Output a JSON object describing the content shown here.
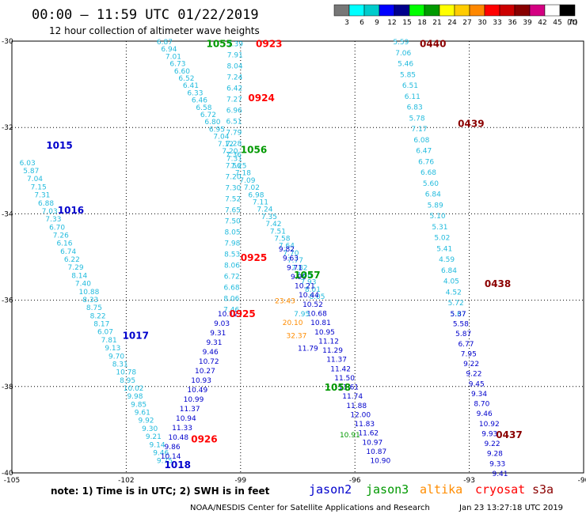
{
  "title": "00:00 – 11:59 UTC 01/22/2019",
  "subtitle": "12 hour collection of altimeter wave heights",
  "footer_left": "NOAA/NESDIS Center for Satellite Applications and Research",
  "footer_right": "Jan 23 13:27:18 UTC 2019",
  "note": "note: 1) Time is in UTC; 2) SWH is in feet",
  "satellites": [
    {
      "name": "jason2",
      "color": "#0000cc"
    },
    {
      "name": "jason3",
      "color": "#009900"
    },
    {
      "name": "altika",
      "color": "#ff8c00"
    },
    {
      "name": "cryosat",
      "color": "#ff0000"
    },
    {
      "name": "s3a",
      "color": "#8b0000"
    }
  ],
  "colorbar": {
    "unit": "(ft)",
    "colors": [
      "#777777",
      "#00ffff",
      "#00cccc",
      "#0000ff",
      "#00008b",
      "#00ff00",
      "#009900",
      "#ffff00",
      "#ffcc00",
      "#ff8800",
      "#ff0000",
      "#cc0000",
      "#880000",
      "#d40082",
      "#ffffff",
      "#000000"
    ],
    "labels": [
      "3",
      "6",
      "9",
      "12",
      "15",
      "18",
      "21",
      "24",
      "27",
      "30",
      "33",
      "36",
      "39",
      "42",
      "45",
      "70"
    ]
  },
  "chart_data": {
    "type": "scatter",
    "xlim": [
      -105,
      -90
    ],
    "ylim": [
      -40,
      -30
    ],
    "x_ticks": [
      "-105",
      "-102",
      "-99",
      "-96",
      "-93",
      "-90"
    ],
    "y_ticks": [
      "-30",
      "-32",
      "-34",
      "-36",
      "-38",
      "-40"
    ],
    "grid": true,
    "tracks": [
      {
        "id": "A",
        "color": "#22bbdd",
        "start": [
          -104.8,
          -32.8
        ],
        "end": [
          -101.2,
          -39.7
        ],
        "values": [
          "6.03",
          "5.87",
          "7.04",
          "7.15",
          "7.31",
          "6.88",
          "7.03",
          "7.33",
          "6.70",
          "7.26",
          "6.16",
          "6.74",
          "6.22",
          "7.29",
          "8.14",
          "7.40",
          "10.88",
          "8.33",
          "8.75",
          "8.22",
          "8.17",
          "6.07",
          "7.81",
          "9.13",
          "9.70",
          "8.31",
          "10.78",
          "8.95",
          "10.02",
          "9.98",
          "9.85",
          "9.61",
          "9.92",
          "9.30",
          "9.21",
          "9.14",
          "9.46",
          "9.75"
        ]
      },
      {
        "id": "B",
        "color": "#22bbdd",
        "start": [
          -101.2,
          -30.0
        ],
        "end": [
          -97.2,
          -35.9
        ],
        "values": [
          "6.87",
          "6.94",
          "7.01",
          "6.73",
          "6.60",
          "6.52",
          "6.41",
          "6.33",
          "6.46",
          "6.58",
          "6.72",
          "6.80",
          "6.95",
          "7.04",
          "7.12",
          "7.20",
          "7.31",
          "7.25",
          "7.18",
          "7.09",
          "7.02",
          "6.98",
          "7.11",
          "7.24",
          "7.35",
          "7.42",
          "7.51",
          "7.58",
          "7.64",
          "7.70",
          "7.77",
          "7.82",
          "7.88",
          "7.93",
          "8.01",
          "8.05"
        ]
      },
      {
        "id": "C",
        "color": "#22bbdd",
        "start": [
          -99.35,
          -30.05
        ],
        "end": [
          -99.45,
          -36.2
        ],
        "values": [
          "7.39",
          "7.91",
          "8.04",
          "7.24",
          "6.42",
          "7.27",
          "6.96",
          "6.51",
          "7.79",
          "7.28",
          "7.36",
          "7.56",
          "7.20",
          "7.30",
          "7.52",
          "7.65",
          "7.50",
          "8.05",
          "7.98",
          "8.53",
          "8.06",
          "6.72",
          "6.68",
          "8.06",
          "7.46"
        ]
      },
      {
        "id": "D",
        "color": "#0000cc",
        "start": [
          -99.6,
          -36.3
        ],
        "end": [
          -101.1,
          -39.6
        ],
        "values": [
          "10.12",
          "9.03",
          "9.31",
          "9.31",
          "9.46",
          "10.72",
          "10.27",
          "10.93",
          "10.49",
          "10.99",
          "11.37",
          "10.94",
          "11.33",
          "10.48",
          "9.86",
          "10.14"
        ]
      },
      {
        "id": "E",
        "color": "#0000cc",
        "start": [
          -98.0,
          -34.8
        ],
        "end": [
          -95.6,
          -39.7
        ],
        "values": [
          "9.82",
          "9.63",
          "9.71",
          "9.90",
          "10.21",
          "10.44",
          "10.52",
          "10.68",
          "10.81",
          "10.95",
          "11.12",
          "11.29",
          "11.37",
          "11.42",
          "11.50",
          "11.61",
          "11.74",
          "11.88",
          "12.00",
          "11.83",
          "11.62",
          "10.97",
          "10.87",
          "10.90"
        ]
      },
      {
        "id": "F",
        "color": "#22bbdd",
        "start": [
          -95.0,
          -30.0
        ],
        "end": [
          -93.5,
          -36.3
        ],
        "values": [
          "5.59",
          "7.06",
          "5.46",
          "5.85",
          "6.51",
          "6.11",
          "6.83",
          "5.78",
          "7.17",
          "6.08",
          "6.47",
          "6.76",
          "6.68",
          "5.60",
          "6.84",
          "5.89",
          "5.10",
          "5.31",
          "5.02",
          "5.41",
          "4.59",
          "6.84",
          "4.05",
          "4.52",
          "5.72",
          "5.67"
        ]
      },
      {
        "id": "G",
        "color": "#0000cc",
        "start": [
          -93.5,
          -36.3
        ],
        "end": [
          -92.4,
          -40.0
        ],
        "values": [
          "5.37",
          "5.58",
          "5.87",
          "6.77",
          "7.95",
          "9.22",
          "9.22",
          "9.45",
          "9.34",
          "8.70",
          "9.46",
          "10.92",
          "9.93",
          "9.22",
          "9.28",
          "9.33",
          "9.41"
        ]
      }
    ],
    "time_stamps": [
      {
        "text": "1055",
        "color": "#009900",
        "at": [
          -99.9,
          -30.05
        ]
      },
      {
        "text": "0923",
        "color": "#ff0000",
        "at": [
          -98.6,
          -30.05
        ]
      },
      {
        "text": "0440",
        "color": "#8b0000",
        "at": [
          -94.3,
          -30.05
        ]
      },
      {
        "text": "0924",
        "color": "#ff0000",
        "at": [
          -98.8,
          -31.3
        ]
      },
      {
        "text": "0439",
        "color": "#8b0000",
        "at": [
          -93.3,
          -31.9
        ]
      },
      {
        "text": "1056",
        "color": "#009900",
        "at": [
          -99.0,
          -32.5
        ]
      },
      {
        "text": "1015",
        "color": "#0000cc",
        "at": [
          -104.1,
          -32.4
        ]
      },
      {
        "text": "1016",
        "color": "#0000cc",
        "at": [
          -103.8,
          -33.9
        ]
      },
      {
        "text": "0925",
        "color": "#ff0000",
        "at": [
          -99.0,
          -35.0
        ]
      },
      {
        "text": "1057",
        "color": "#009900",
        "at": [
          -97.6,
          -35.4
        ]
      },
      {
        "text": "0438",
        "color": "#8b0000",
        "at": [
          -92.6,
          -35.6
        ]
      },
      {
        "text": "0925",
        "color": "#ff0000",
        "at": [
          -99.3,
          -36.3
        ]
      },
      {
        "text": "1017",
        "color": "#0000cc",
        "at": [
          -102.1,
          -36.8
        ]
      },
      {
        "text": "1058",
        "color": "#009900",
        "at": [
          -96.8,
          -38.0
        ]
      },
      {
        "text": "0437",
        "color": "#8b0000",
        "at": [
          -92.3,
          -39.1
        ]
      },
      {
        "text": "0926",
        "color": "#ff0000",
        "at": [
          -100.3,
          -39.2
        ]
      },
      {
        "text": "1018",
        "color": "#0000cc",
        "at": [
          -101.0,
          -39.8
        ]
      }
    ],
    "overlay_values": [
      {
        "text": "23.43",
        "color": "#ff8c00",
        "at": [
          -98.1,
          -36.0
        ]
      },
      {
        "text": "20.10",
        "color": "#ff8c00",
        "at": [
          -97.9,
          -36.5
        ]
      },
      {
        "text": "32.37",
        "color": "#ff8c00",
        "at": [
          -97.8,
          -36.8
        ]
      },
      {
        "text": "11.79",
        "color": "#0000cc",
        "at": [
          -97.5,
          -37.1
        ]
      },
      {
        "text": "7.95",
        "color": "#22bbdd",
        "at": [
          -97.6,
          -36.3
        ]
      },
      {
        "text": "10.91",
        "color": "#009900",
        "at": [
          -96.4,
          -39.1
        ]
      }
    ]
  }
}
